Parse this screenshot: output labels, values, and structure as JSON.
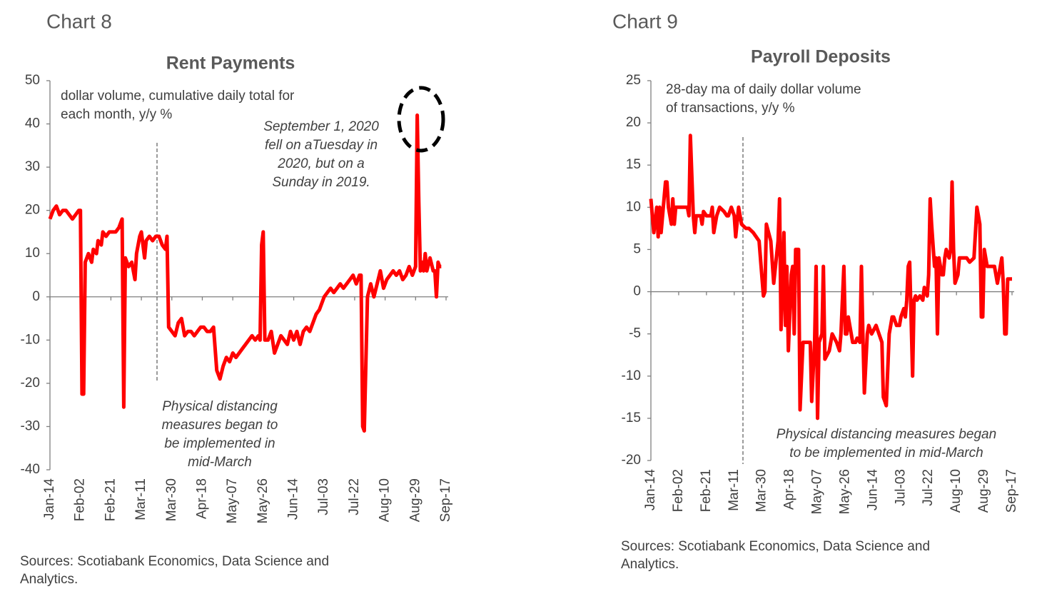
{
  "chart_data": [
    {
      "type": "line",
      "heading": "Chart 8",
      "title": "Rent Payments",
      "color": "#ff0000",
      "annotations": [
        [
          "dollar volume, cumulative daily total for",
          "each month, y/y %"
        ],
        [
          "September 1, 2020",
          "fell on aTuesday in",
          "2020, but on a",
          "Sunday in 2019."
        ],
        [
          "Physical distancing",
          "measures began to",
          "be implemented in",
          "mid-March"
        ]
      ],
      "source": [
        "Sources: Scotiabank Economics, Data Science and",
        "Analytics."
      ],
      "ylim": [
        -40,
        50
      ],
      "yticks": [
        -40,
        -30,
        -20,
        -10,
        0,
        10,
        20,
        30,
        40,
        50
      ],
      "xlim": [
        0,
        247
      ],
      "xticks": [
        {
          "value": 0,
          "label": "Jan-14"
        },
        {
          "value": 19,
          "label": "Feb-02"
        },
        {
          "value": 38,
          "label": "Feb-21"
        },
        {
          "value": 57,
          "label": "Mar-11"
        },
        {
          "value": 76,
          "label": "Mar-30"
        },
        {
          "value": 95,
          "label": "Apr-18"
        },
        {
          "value": 114,
          "label": "May-07"
        },
        {
          "value": 133,
          "label": "May-26"
        },
        {
          "value": 152,
          "label": "Jun-14"
        },
        {
          "value": 171,
          "label": "Jul-03"
        },
        {
          "value": 190,
          "label": "Jul-22"
        },
        {
          "value": 209,
          "label": "Aug-10"
        },
        {
          "value": 228,
          "label": "Aug-29"
        },
        {
          "value": 247,
          "label": "Sep-17"
        }
      ],
      "x": [
        0,
        2,
        4,
        6,
        8,
        10,
        12,
        14,
        16,
        18,
        19,
        20,
        21,
        22,
        24,
        26,
        27,
        29,
        30,
        32,
        33,
        35,
        37,
        39,
        41,
        43,
        45,
        46,
        47,
        49,
        51,
        53,
        54,
        56,
        57,
        59,
        60,
        62,
        64,
        66,
        68,
        70,
        72,
        73,
        74,
        76,
        78,
        80,
        82,
        84,
        86,
        88,
        90,
        92,
        94,
        96,
        98,
        100,
        102,
        104,
        106,
        108,
        110,
        112,
        114,
        116,
        118,
        120,
        122,
        124,
        126,
        128,
        130,
        131,
        132,
        133,
        134,
        136,
        138,
        140,
        142,
        144,
        146,
        148,
        150,
        152,
        154,
        156,
        158,
        160,
        162,
        164,
        166,
        168,
        170,
        171,
        173,
        175,
        177,
        179,
        181,
        183,
        185,
        187,
        189,
        191,
        193,
        194,
        195,
        196,
        197,
        198,
        200,
        202,
        204,
        206,
        208,
        210,
        212,
        214,
        216,
        218,
        220,
        222,
        224,
        226,
        228,
        229,
        230,
        231,
        232,
        233,
        234,
        235,
        237,
        239,
        240,
        241,
        242,
        243,
        244
      ],
      "values": [
        18,
        20,
        21,
        19,
        20,
        20,
        19,
        18,
        19,
        20,
        20,
        -22.5,
        -22.5,
        8,
        10,
        8,
        11,
        10,
        13,
        12,
        15,
        14,
        15,
        15,
        15,
        16,
        18,
        -25.5,
        9,
        7,
        8,
        4,
        10,
        14,
        15,
        9,
        13,
        14,
        13,
        14,
        14,
        12,
        11,
        14,
        -7,
        -8,
        -9,
        -6,
        -5,
        -9,
        -8,
        -8,
        -9,
        -8,
        -7,
        -7,
        -8,
        -8,
        -7,
        -17,
        -19,
        -16,
        -14,
        -15,
        -13,
        -14,
        -13,
        -12,
        -11,
        -10,
        -9,
        -10,
        -9,
        -10,
        12,
        15,
        -10,
        -10,
        -8,
        -13,
        -11,
        -9,
        -10,
        -11,
        -8,
        -10,
        -8,
        -11,
        -8,
        -7,
        -8,
        -6,
        -4,
        -3,
        -1,
        0,
        1,
        2,
        1,
        2,
        3,
        2,
        3,
        4,
        5,
        3,
        5,
        5,
        -30,
        -31,
        -15,
        0,
        3,
        0,
        3,
        6,
        2,
        4,
        5,
        6,
        5,
        6,
        4,
        5,
        7,
        5,
        7,
        42,
        22,
        6,
        8,
        6,
        10,
        6,
        9,
        6,
        6,
        0,
        8,
        7,
        7
      ]
    },
    {
      "type": "line",
      "heading": "Chart 9",
      "title": "Payroll Deposits",
      "color": "#ff0000",
      "annotations": [
        [
          "28-day ma of daily dollar volume",
          "of transactions, y/y %"
        ],
        [
          "Physical distancing measures began",
          "to be implemented in mid-March"
        ]
      ],
      "source": [
        "Sources: Scotiabank Economics, Data Science and",
        "Analytics."
      ],
      "ylim": [
        -20,
        25
      ],
      "yticks": [
        -20,
        -15,
        -10,
        -5,
        0,
        5,
        10,
        15,
        20,
        25
      ],
      "xlim": [
        0,
        247
      ],
      "xticks": [
        {
          "value": 0,
          "label": "Jan-14"
        },
        {
          "value": 19,
          "label": "Feb-02"
        },
        {
          "value": 38,
          "label": "Feb-21"
        },
        {
          "value": 57,
          "label": "Mar-11"
        },
        {
          "value": 76,
          "label": "Mar-30"
        },
        {
          "value": 95,
          "label": "Apr-18"
        },
        {
          "value": 114,
          "label": "May-07"
        },
        {
          "value": 133,
          "label": "May-26"
        },
        {
          "value": 152,
          "label": "Jun-14"
        },
        {
          "value": 171,
          "label": "Jul-03"
        },
        {
          "value": 190,
          "label": "Jul-22"
        },
        {
          "value": 209,
          "label": "Aug-10"
        },
        {
          "value": 228,
          "label": "Aug-29"
        },
        {
          "value": 247,
          "label": "Sep-17"
        }
      ],
      "x": [
        0,
        1,
        2,
        4,
        5,
        6,
        7,
        9,
        10,
        11,
        12,
        14,
        15,
        16,
        17,
        20,
        22,
        25,
        26,
        27,
        29,
        30,
        31,
        34,
        35,
        36,
        38,
        41,
        42,
        43,
        45,
        47,
        50,
        52,
        53,
        55,
        57,
        58,
        60,
        62,
        65,
        67,
        70,
        72,
        74,
        77,
        78,
        79,
        82,
        84,
        87,
        88,
        89,
        91,
        92,
        93,
        94,
        96,
        97,
        98,
        99,
        101,
        102,
        104,
        107,
        109,
        110,
        112,
        113,
        114,
        115,
        117,
        118,
        119,
        122,
        123,
        124,
        127,
        129,
        130,
        132,
        133,
        134,
        135,
        137,
        138,
        140,
        141,
        143,
        144,
        145,
        146,
        148,
        149,
        151,
        154,
        156,
        158,
        159,
        160,
        161,
        163,
        164,
        165,
        166,
        168,
        170,
        171,
        173,
        174,
        175,
        176,
        177,
        179,
        180,
        181,
        182,
        184,
        186,
        187,
        189,
        190,
        191,
        192,
        194,
        195,
        196,
        197,
        199,
        200,
        201,
        202,
        204,
        205,
        206,
        207,
        208,
        210,
        211,
        213,
        216,
        218,
        221,
        223,
        225,
        226,
        227,
        228,
        230,
        232,
        235,
        237,
        240,
        241,
        242,
        243,
        244,
        247
      ],
      "values": [
        11,
        9,
        7,
        10,
        6.5,
        10,
        7,
        11,
        13,
        13,
        10,
        8,
        11,
        8,
        10,
        10,
        10,
        10,
        9,
        18.5,
        9,
        7,
        9,
        9,
        8,
        9.5,
        9,
        9,
        10,
        7,
        9,
        10,
        9.5,
        9,
        9,
        10,
        9,
        6.5,
        10,
        8,
        7.5,
        7.5,
        7,
        6.5,
        6,
        -0.5,
        0,
        8,
        6,
        1,
        6,
        11,
        -4.5,
        7,
        -4,
        3,
        -7,
        2,
        3,
        -5,
        5,
        5,
        -14,
        -6,
        -6,
        -6,
        -13,
        -6,
        3,
        -15,
        -6,
        -5,
        3,
        -8,
        -7,
        -6,
        -5,
        -6,
        -7,
        -5,
        3,
        -5,
        -5,
        -3,
        -5,
        -6,
        -6,
        -5.5,
        -6,
        3,
        -5,
        -12,
        -5,
        -4,
        -5,
        -4,
        -5,
        -6,
        -12.5,
        -13,
        -13.5,
        -5,
        -4,
        -3,
        -3,
        -4,
        -4,
        -3,
        -2,
        -3,
        -1,
        3,
        3.5,
        -10,
        -1,
        -0.5,
        -1,
        -0.5,
        -1,
        0.5,
        -0.5,
        2,
        11,
        8,
        3,
        4,
        -5,
        4,
        2,
        2,
        4,
        5,
        4,
        5,
        13,
        5,
        1,
        2,
        4,
        4,
        4,
        3.5,
        4,
        10,
        8,
        -3,
        -3,
        5,
        3,
        3,
        3,
        1,
        4,
        1,
        -5,
        -5,
        1.5,
        1.5
      ]
    }
  ]
}
